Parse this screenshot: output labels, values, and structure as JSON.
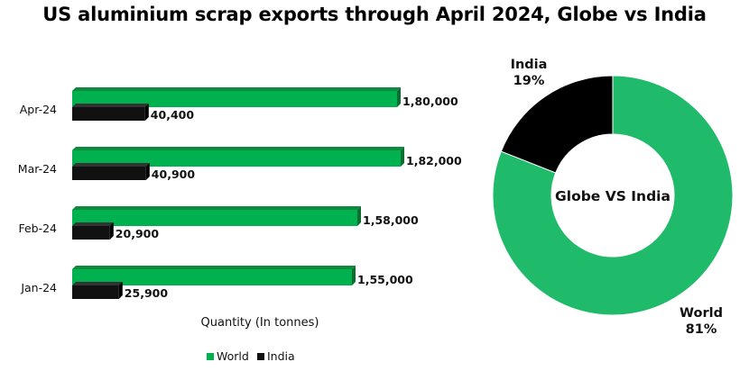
{
  "title": "US aluminium scrap exports through April 2024, Globe vs India",
  "colors": {
    "world": "#00b14f",
    "world_top": "#0e8a3c",
    "world_side": "#0a6e30",
    "india": "#111111",
    "india_top": "#333333",
    "donut_world": "#1fba6a",
    "donut_india": "#000000"
  },
  "chart_data": [
    {
      "type": "bar",
      "orientation": "horizontal",
      "categories": [
        "Apr-24",
        "Mar-24",
        "Feb-24",
        "Jan-24"
      ],
      "series": [
        {
          "name": "World",
          "values": [
            180000,
            182000,
            158000,
            155000
          ],
          "labels": [
            "1,80,000",
            "1,82,000",
            "1,58,000",
            "1,55,000"
          ]
        },
        {
          "name": "India",
          "values": [
            40400,
            40900,
            20900,
            25900
          ],
          "labels": [
            "40,400",
            "40,900",
            "20,900",
            "25,900"
          ]
        }
      ],
      "xlabel": "Quantity (In tonnes)",
      "xlim": [
        0,
        200000
      ],
      "grid": false,
      "legend": "bottom"
    },
    {
      "type": "pie",
      "style": "donut",
      "center_label": "Globe VS India",
      "slices": [
        {
          "name": "World",
          "value": 81,
          "label": "81%"
        },
        {
          "name": "India",
          "value": 19,
          "label": "19%"
        }
      ]
    }
  ]
}
